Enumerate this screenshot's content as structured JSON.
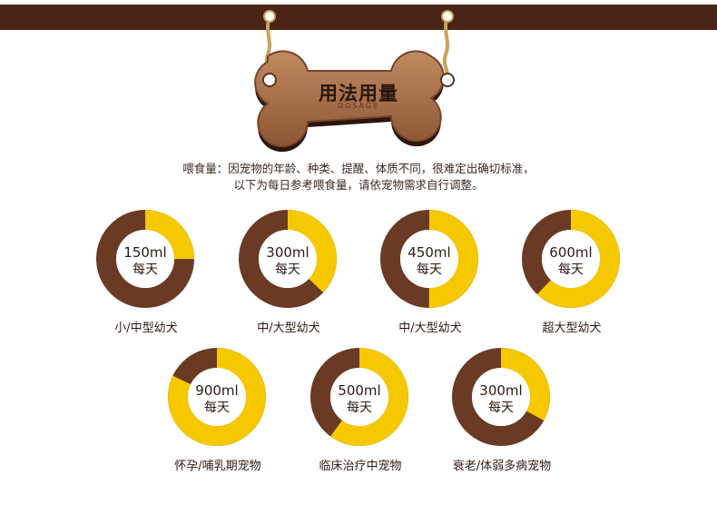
{
  "header": {
    "title": "用法用量",
    "subtitle": "DOSAGE"
  },
  "intro": {
    "line1": "喂食量：因宠物的年龄、种类、提醒、体质不同，很难定出确切标准，",
    "line2": "以下为每日参考喂食量，请依宠物需求自行调整。"
  },
  "colors": {
    "bar": "#4a2417",
    "ring_brown": "#6b3a24",
    "ring_yellow": "#f5c800",
    "wood": "#a9714b"
  },
  "doses": [
    {
      "amount": "150ml",
      "unit": "每天",
      "label": "小/中型幼犬",
      "fraction": 0.25
    },
    {
      "amount": "300ml",
      "unit": "每天",
      "label": "中/大型幼犬",
      "fraction": 0.37
    },
    {
      "amount": "450ml",
      "unit": "每天",
      "label": "中/大型幼犬",
      "fraction": 0.5
    },
    {
      "amount": "600ml",
      "unit": "每天",
      "label": "超大型幼犬",
      "fraction": 0.62
    },
    {
      "amount": "900ml",
      "unit": "每天",
      "label": "怀孕/哺乳期宠物",
      "fraction": 0.82
    },
    {
      "amount": "500ml",
      "unit": "每天",
      "label": "临床治疗中宠物",
      "fraction": 0.6
    },
    {
      "amount": "300ml",
      "unit": "每天",
      "label": "衰老/体弱多病宠物",
      "fraction": 0.33
    }
  ]
}
